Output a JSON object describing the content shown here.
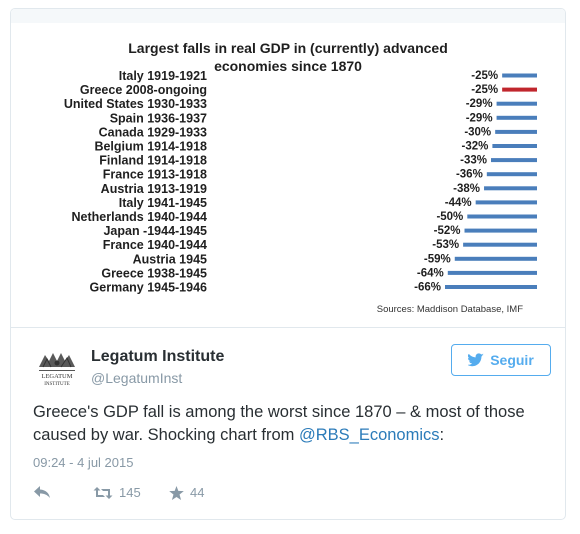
{
  "chart_data": {
    "type": "bar",
    "title_lines": [
      "Largest falls in real GDP in (currently) advanced",
      "economies since 1870"
    ],
    "categories": [
      "Italy 1919-1921",
      "Greece 2008-ongoing",
      "United States 1930-1933",
      "Spain 1936-1937",
      "Canada 1929-1933",
      "Belgium 1914-1918",
      "Finland 1914-1918",
      "France 1913-1918",
      "Austria 1913-1919",
      "Italy 1941-1945",
      "Netherlands 1940-1944",
      "Japan -1944-1945",
      "France 1940-1944",
      "Austria 1945",
      "Greece 1938-1945",
      "Germany 1945-1946"
    ],
    "values": [
      -25,
      -25,
      -29,
      -29,
      -30,
      -32,
      -33,
      -36,
      -38,
      -44,
      -50,
      -52,
      -53,
      -59,
      -64,
      -66
    ],
    "value_labels": [
      "-25%",
      "-25%",
      "-29%",
      "-29%",
      "-30%",
      "-32%",
      "-33%",
      "-36%",
      "-38%",
      "-44%",
      "-50%",
      "-52%",
      "-53%",
      "-59%",
      "-64%",
      "-66%"
    ],
    "highlight_index": 1,
    "colors": {
      "bar": "#4a7ebb",
      "highlight": "#c0262d"
    },
    "source": "Sources: Maddison Database, IMF",
    "xlim": [
      -66,
      0
    ]
  },
  "tweet": {
    "author_name": "Legatum Institute",
    "author_handle": "@LegatumInst",
    "avatar_text": "LEGATUM INSTITUTE",
    "follow_label": "Seguir",
    "follow_icon": "twitter-bird-icon",
    "text_before": "Greece's GDP fall is among the worst since 1870 – & most of those caused by war. Shocking chart from ",
    "mention": "@RBS_Economics",
    "text_after": ":",
    "timestamp": "09:24 - 4 jul 2015",
    "actions": {
      "reply_icon": "reply-icon",
      "retweet_icon": "retweet-icon",
      "retweet_count": "145",
      "favorite_icon": "star-icon",
      "favorite_count": "44"
    },
    "colors": {
      "link": "#2b7bb9",
      "follow": "#55acee",
      "muted": "#8899a6"
    }
  }
}
